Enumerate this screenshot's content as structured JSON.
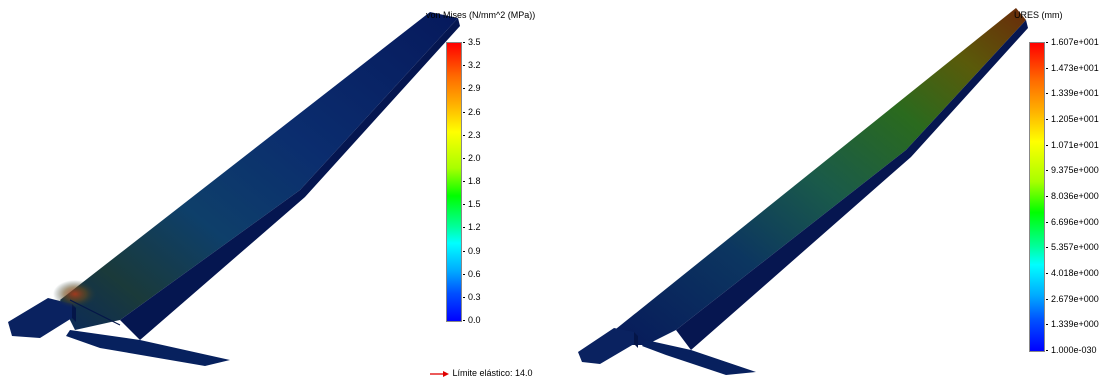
{
  "left": {
    "legend_title": "von Mises (N/mm^2 (MPa))",
    "ticks": [
      "3.5",
      "3.2",
      "2.9",
      "2.6",
      "2.3",
      "2.0",
      "1.8",
      "1.5",
      "1.2",
      "0.9",
      "0.6",
      "0.3",
      "0.0"
    ],
    "yield_label": "Límite elástico: 14.0"
  },
  "right": {
    "legend_title": "URES (mm)",
    "ticks": [
      "1.607e+001",
      "1.473e+001",
      "1.339e+001",
      "1.205e+001",
      "1.071e+001",
      "9.375e+000",
      "8.036e+000",
      "6.696e+000",
      "5.357e+000",
      "4.018e+000",
      "2.679e+000",
      "1.339e+000",
      "1.000e-030"
    ]
  },
  "colors": {
    "shell_dark": "#061a5a",
    "arrow_red": "#e00000"
  }
}
